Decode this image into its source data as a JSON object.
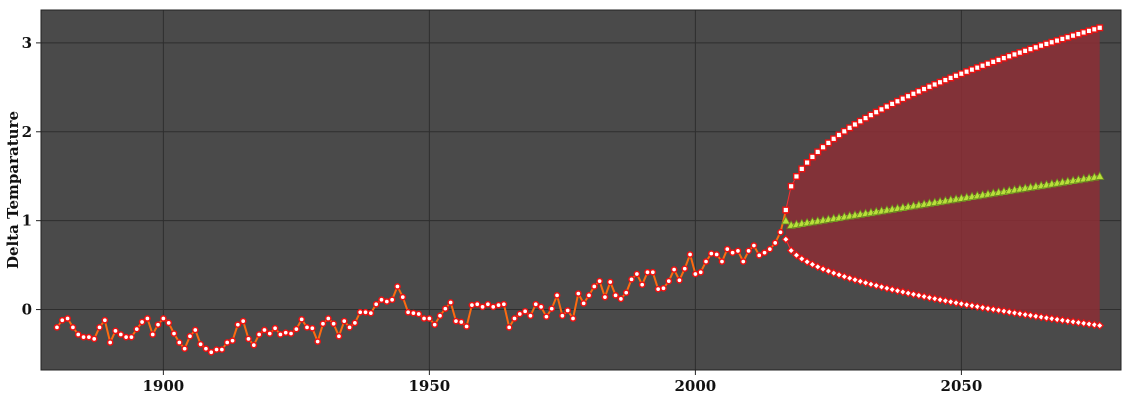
{
  "chart_data": {
    "type": "line",
    "title": "",
    "xlabel": "",
    "ylabel": "Delta Temparature",
    "xlim": [
      1877,
      2080
    ],
    "ylim": [
      -0.68,
      3.37
    ],
    "xticks": [
      1900,
      1950,
      2000,
      2050
    ],
    "yticks": [
      0,
      1,
      2,
      3
    ],
    "grid": true,
    "colors": {
      "background": "#4a4a4a",
      "grid": "#2e2e2e",
      "history_line": "#ff6a10",
      "marker_fill": "#ffffff",
      "marker_edge": "#ee1111",
      "forecast_line": "#d4f060",
      "forecast_marker": "#b8e03a",
      "band_fill": "#8c2e35"
    },
    "series": [
      {
        "type": "line",
        "marker": "circle",
        "x_start": 1880,
        "x_step": 1,
        "values": [
          -0.2,
          -0.12,
          -0.1,
          -0.2,
          -0.28,
          -0.31,
          -0.31,
          -0.33,
          -0.2,
          -0.12,
          -0.37,
          -0.24,
          -0.28,
          -0.31,
          -0.31,
          -0.22,
          -0.14,
          -0.1,
          -0.28,
          -0.17,
          -0.1,
          -0.15,
          -0.27,
          -0.37,
          -0.44,
          -0.3,
          -0.23,
          -0.39,
          -0.44,
          -0.48,
          -0.45,
          -0.45,
          -0.37,
          -0.35,
          -0.17,
          -0.13,
          -0.33,
          -0.4,
          -0.28,
          -0.23,
          -0.27,
          -0.21,
          -0.28,
          -0.26,
          -0.27,
          -0.22,
          -0.11,
          -0.2,
          -0.21,
          -0.36,
          -0.16,
          -0.1,
          -0.16,
          -0.3,
          -0.13,
          -0.2,
          -0.15,
          -0.03,
          -0.03,
          -0.04,
          0.06,
          0.11,
          0.09,
          0.11,
          0.26,
          0.14,
          -0.03,
          -0.04,
          -0.05,
          -0.1,
          -0.1,
          -0.17,
          -0.07,
          0.01,
          0.08,
          -0.13,
          -0.14,
          -0.19,
          0.05,
          0.06,
          0.03,
          0.06,
          0.03,
          0.05,
          0.06,
          -0.2,
          -0.1,
          -0.05,
          -0.02,
          -0.07,
          0.06,
          0.03,
          -0.08,
          0.01,
          0.16,
          -0.07,
          -0.01,
          -0.1,
          0.18,
          0.07,
          0.16,
          0.26,
          0.32,
          0.14,
          0.31,
          0.16,
          0.12,
          0.19,
          0.34,
          0.4,
          0.28,
          0.42,
          0.42,
          0.23,
          0.24,
          0.32,
          0.45,
          0.33,
          0.46,
          0.62,
          0.4,
          0.42,
          0.54,
          0.63,
          0.62,
          0.54,
          0.68,
          0.64,
          0.66,
          0.54,
          0.66,
          0.72,
          0.61,
          0.64,
          0.68,
          0.75,
          0.87,
          1.11
        ]
      },
      {
        "type": "line",
        "marker": "triangle",
        "x_start": 2017,
        "x_end": 2076,
        "y_start": 1.0,
        "y_min": 0.95,
        "y_end": 1.5
      },
      {
        "type": "line",
        "marker": "square",
        "x_start": 2017,
        "x_end": 2076,
        "y_start": 1.12,
        "y_end": 3.17
      },
      {
        "type": "line",
        "marker": "diamond",
        "x_start": 2017,
        "x_end": 2076,
        "y_start": 0.79,
        "y_end": -0.18
      }
    ]
  }
}
